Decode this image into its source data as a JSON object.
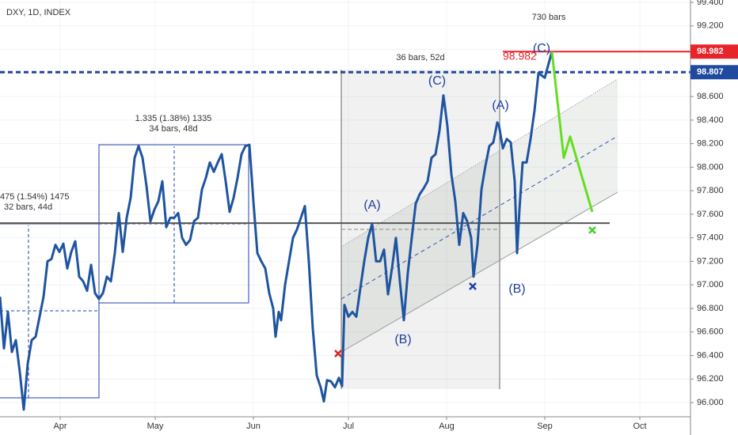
{
  "chart_data": {
    "type": "line",
    "title": "DXY, 1D, INDEX",
    "xlim": [
      72,
      290
    ],
    "ylim": [
      95.72,
      99.42
    ],
    "grid": true,
    "xticks": [
      {
        "value": 91,
        "label": "Apr"
      },
      {
        "value": 121,
        "label": "May"
      },
      {
        "value": 152,
        "label": "Jun"
      },
      {
        "value": 182,
        "label": "Jul"
      },
      {
        "value": 213,
        "label": "Aug"
      },
      {
        "value": 244,
        "label": "Sep"
      },
      {
        "value": 274,
        "label": "Oct"
      }
    ],
    "yticks": [
      {
        "value": 96.0,
        "label": "96.000"
      },
      {
        "value": 96.2,
        "label": "96.200"
      },
      {
        "value": 96.4,
        "label": "96.400"
      },
      {
        "value": 96.6,
        "label": "96.600"
      },
      {
        "value": 96.8,
        "label": "96.800"
      },
      {
        "value": 97.0,
        "label": "97.000"
      },
      {
        "value": 97.2,
        "label": "97.200"
      },
      {
        "value": 97.4,
        "label": "97.400"
      },
      {
        "value": 97.6,
        "label": "97.600"
      },
      {
        "value": 97.8,
        "label": "97.800"
      },
      {
        "value": 98.0,
        "label": "98.000"
      },
      {
        "value": 98.2,
        "label": "98.200"
      },
      {
        "value": 98.4,
        "label": "98.400"
      },
      {
        "value": 98.6,
        "label": "98.600"
      },
      {
        "value": 98.8,
        "label": "98.800"
      },
      {
        "value": 99.0,
        "label": "99.000"
      },
      {
        "value": 99.2,
        "label": "99.200"
      },
      {
        "value": 99.4,
        "label": "99.400"
      }
    ],
    "series": [
      {
        "color": "#1f54a0",
        "x": [
          72,
          73.25,
          74.5,
          75.75,
          77,
          78.25,
          79.5,
          80.75,
          82,
          83.25,
          84.5,
          85.75,
          87,
          88.25,
          89.5,
          90.75,
          92,
          93.25,
          94.5,
          95.75,
          97,
          98.25,
          99.5,
          100.75,
          102,
          103.25,
          104.5,
          105.75,
          107,
          108.25,
          109.5,
          110.75,
          112,
          113.25,
          114.5,
          115.75,
          117,
          118.25,
          119.5,
          120.75,
          122,
          123.25,
          124.5,
          125.75,
          127,
          128.25,
          129.5,
          130.75,
          132,
          133.25,
          134.5,
          135.75,
          137,
          138.25,
          139.5,
          140.75,
          142,
          143.25,
          144.5,
          145.75,
          147,
          148.25,
          149.5,
          150.75,
          152,
          153.25,
          154.5,
          155.75,
          157,
          158.25,
          159,
          160,
          160.75,
          162,
          163.25,
          164.5,
          165.75,
          167,
          168.25,
          169.5,
          170.75,
          172,
          173.25,
          174.25,
          175.25,
          176.5,
          177.75,
          179,
          180,
          180.75,
          182,
          183.25,
          184.5,
          185.75,
          187,
          188.25,
          189.5,
          190.75,
          192,
          193.25,
          194.5,
          195.75,
          197,
          198.25,
          199.5,
          200.75,
          202,
          203.25,
          204.5,
          205.75,
          207,
          208.25,
          209.5,
          210.75,
          212,
          213.25,
          214.5,
          215.75,
          217,
          218.25,
          219.5,
          220.75,
          221.5,
          222.75,
          224,
          225.25,
          226.5,
          227.75,
          229,
          229.5,
          230.75,
          232,
          233.25,
          234.5,
          235.25,
          236,
          237,
          238.25,
          239.5,
          240.75,
          242,
          244,
          246.25
        ],
        "values": [
          96.9,
          96.46,
          96.77,
          96.43,
          96.53,
          96.26,
          95.94,
          96.33,
          96.53,
          96.56,
          96.73,
          96.9,
          97.2,
          97.22,
          97.34,
          97.28,
          97.35,
          97.14,
          97.28,
          97.37,
          97.07,
          97.03,
          96.95,
          97.17,
          96.93,
          96.88,
          96.93,
          97.07,
          97.03,
          97.27,
          97.61,
          97.28,
          97.57,
          97.74,
          98.08,
          98.18,
          98.08,
          97.84,
          97.54,
          97.64,
          97.71,
          97.88,
          97.49,
          97.57,
          97.57,
          97.61,
          97.4,
          97.34,
          97.38,
          97.54,
          97.57,
          97.81,
          97.91,
          98.04,
          97.96,
          98.04,
          98.11,
          97.88,
          97.62,
          97.74,
          97.91,
          98.11,
          98.18,
          98.19,
          97.71,
          97.27,
          97.2,
          97.14,
          96.93,
          96.8,
          96.56,
          96.77,
          96.7,
          97.0,
          97.2,
          97.4,
          97.47,
          97.57,
          97.67,
          97.2,
          96.63,
          96.23,
          96.13,
          96.01,
          96.19,
          96.18,
          96.13,
          96.21,
          96.14,
          96.83,
          96.73,
          96.77,
          96.73,
          96.97,
          97.2,
          97.4,
          97.52,
          97.2,
          97.2,
          97.3,
          96.92,
          97.14,
          97.4,
          97.03,
          96.7,
          97.1,
          97.4,
          97.69,
          97.77,
          97.82,
          97.88,
          98.08,
          98.11,
          98.31,
          98.61,
          98.35,
          97.94,
          97.71,
          97.34,
          97.61,
          97.54,
          97.4,
          97.07,
          97.34,
          97.81,
          98.01,
          98.18,
          98.21,
          98.38,
          98.36,
          98.16,
          98.24,
          98.21,
          97.88,
          97.27,
          97.64,
          98.04,
          98.04,
          98.24,
          98.48,
          98.8,
          98.76,
          98.982
        ]
      },
      {
        "color": "#66dd22",
        "x": [
          246.25,
          250,
          252,
          259
        ],
        "values": [
          98.982,
          98.08,
          98.26,
          97.62
        ]
      }
    ],
    "hlines": [
      {
        "value": 98.982,
        "color": "#e8242b"
      },
      {
        "value": 98.807,
        "color": "#1f4aa0"
      },
      {
        "value": 97.525,
        "color": "#555555"
      }
    ],
    "annotations": [
      "730 bars",
      "36 bars, 52d",
      "(C)",
      "(C)",
      "(A)",
      "(A)",
      "(B)",
      "(B)",
      "1.335 (1.38%) 1335",
      "34 bars, 48d",
      "475 (1.54%) 1475",
      "32 bars, 44d"
    ]
  }
}
